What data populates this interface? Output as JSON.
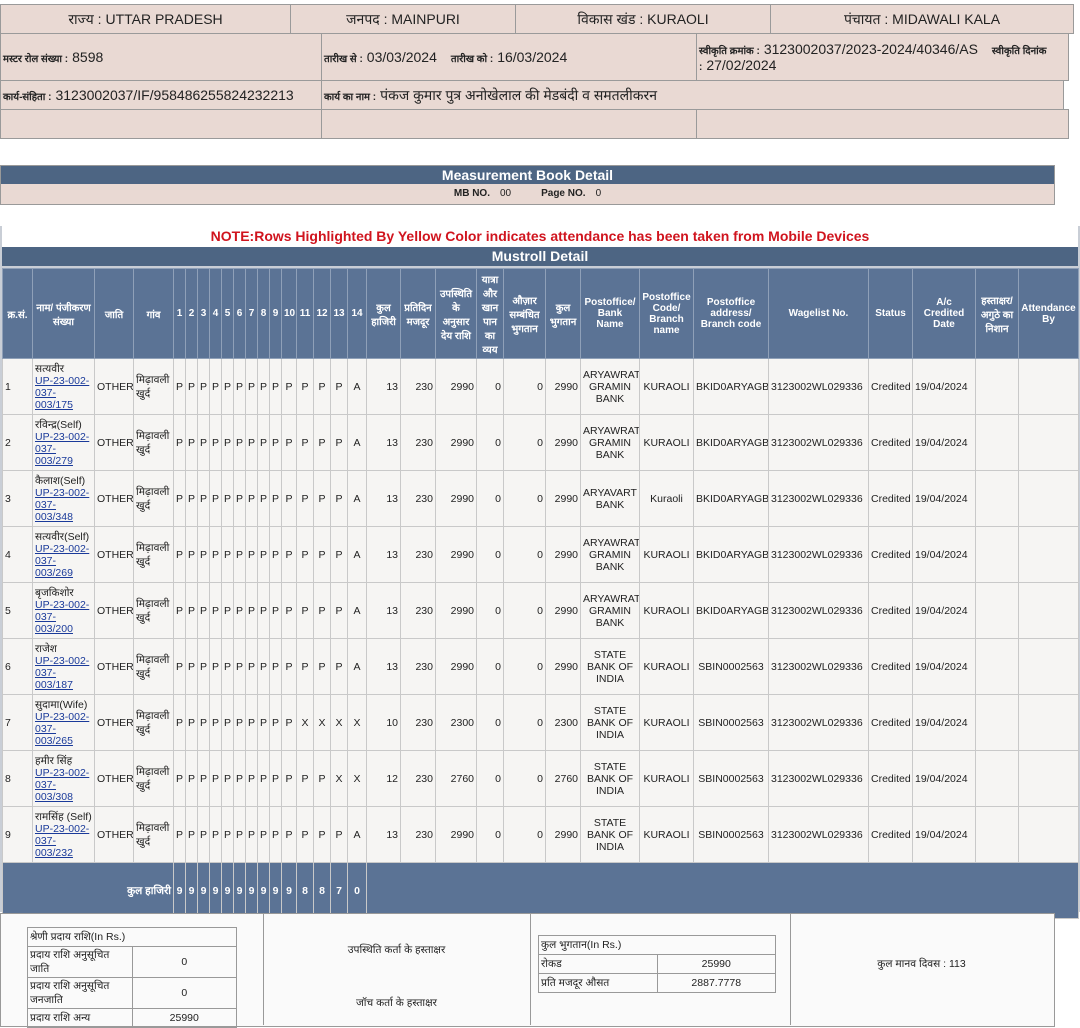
{
  "header": {
    "state": "राज्य : UTTAR PRADESH",
    "district": "जनपद : MAINPURI",
    "block": "विकास खंड : KURAOLI",
    "panchayat": "पंचायत : MIDAWALI KALA",
    "muster_label": "मस्टर रोल संख्या :",
    "muster_no": 8598,
    "from_label": "तारीख से :",
    "from": "03/03/2024",
    "to_label": "तारीख को :",
    "to": "16/03/2024",
    "sanction_label": "स्वीकृति क्रमांक :",
    "sanction_no": "3123002037/2023-2024/40346/AS",
    "sanction_date_label": "स्वीकृति दिनांक :",
    "sanction_date": "27/02/2024",
    "work_code_label": "कार्य-संहिता :",
    "work_code": "3123002037/IF/958486255824232213",
    "work_name_label": "कार्य का नाम :",
    "work_name": "पंकज कुमार पुत्र अनोखेलाल की मेडबंदी व समतलीकरन"
  },
  "mb": {
    "title": "Measurement Book Detail",
    "mb_label": "MB NO.",
    "mb_no": "00",
    "page_label": "Page NO.",
    "page_no": 0
  },
  "note": "NOTE:Rows Highlighted By Yellow Color indicates attendance has been taken from Mobile Devices",
  "mustroll": {
    "title": "Mustroll Detail",
    "columns": [
      "क्र.सं.",
      "नाम/ पंजीकरण संख्या",
      "जाति",
      "गांव",
      1,
      2,
      3,
      4,
      5,
      6,
      7,
      8,
      9,
      10,
      11,
      12,
      13,
      14,
      "कुल हाजिरी",
      "प्रतिदिन मजदूर",
      "उपस्थिति के अनुसार देय राशि",
      "यात्रा और खान पान का व्यय",
      "औज़ार सम्बंधित भुगतान",
      "कुल भुगतान",
      "Postoffice/ Bank Name",
      "Postoffice Code/ Branch name",
      "Postoffice address/ Branch code",
      "Wagelist No.",
      "Status",
      "A/c Credited Date",
      "हस्ताक्षर/ अगुठे का निशान",
      "Attendance By"
    ],
    "rows": [
      {
        "sn": 1,
        "name": "सत्यवीर",
        "reg": "UP-23-002-037-003/175",
        "caste": "OTHER",
        "village": "मिढ़ावली खुर्द",
        "attendance": [
          "P",
          "P",
          "P",
          "P",
          "P",
          "P",
          "P",
          "P",
          "P",
          "P",
          "P",
          "P",
          "P",
          "A"
        ],
        "total_days": 13,
        "daily_wage": 230,
        "due": 2990,
        "travel": 0,
        "tools": 0,
        "total_pay": 2990,
        "bank": "ARYAWRAT GRAMIN BANK",
        "branch": "KURAOLI",
        "code": "BKID0ARYAGB",
        "wagelist": "3123002WL029336",
        "status": "Credited",
        "credited_date": "19/04/2024"
      },
      {
        "sn": 2,
        "name": "रविन्द्र(Self)",
        "reg": "UP-23-002-037-003/279",
        "caste": "OTHER",
        "village": "मिढ़ावली खुर्द",
        "attendance": [
          "P",
          "P",
          "P",
          "P",
          "P",
          "P",
          "P",
          "P",
          "P",
          "P",
          "P",
          "P",
          "P",
          "A"
        ],
        "total_days": 13,
        "daily_wage": 230,
        "due": 2990,
        "travel": 0,
        "tools": 0,
        "total_pay": 2990,
        "bank": "ARYAWRAT GRAMIN BANK",
        "branch": "KURAOLI",
        "code": "BKID0ARYAGB",
        "wagelist": "3123002WL029336",
        "status": "Credited",
        "credited_date": "19/04/2024"
      },
      {
        "sn": 3,
        "name": "कैलाश(Self)",
        "reg": "UP-23-002-037-003/348",
        "caste": "OTHER",
        "village": "मिढ़ावली खुर्द",
        "attendance": [
          "P",
          "P",
          "P",
          "P",
          "P",
          "P",
          "P",
          "P",
          "P",
          "P",
          "P",
          "P",
          "P",
          "A"
        ],
        "total_days": 13,
        "daily_wage": 230,
        "due": 2990,
        "travel": 0,
        "tools": 0,
        "total_pay": 2990,
        "bank": "ARYAVART BANK",
        "branch": "Kuraoli",
        "code": "BKID0ARYAGB",
        "wagelist": "3123002WL029336",
        "status": "Credited",
        "credited_date": "19/04/2024"
      },
      {
        "sn": 4,
        "name": "सत्यवीर(Self)",
        "reg": "UP-23-002-037-003/269",
        "caste": "OTHER",
        "village": "मिढ़ावली खुर्द",
        "attendance": [
          "P",
          "P",
          "P",
          "P",
          "P",
          "P",
          "P",
          "P",
          "P",
          "P",
          "P",
          "P",
          "P",
          "A"
        ],
        "total_days": 13,
        "daily_wage": 230,
        "due": 2990,
        "travel": 0,
        "tools": 0,
        "total_pay": 2990,
        "bank": "ARYAWRAT GRAMIN BANK",
        "branch": "KURAOLI",
        "code": "BKID0ARYAGB",
        "wagelist": "3123002WL029336",
        "status": "Credited",
        "credited_date": "19/04/2024"
      },
      {
        "sn": 5,
        "name": "बृजकिशोर",
        "reg": "UP-23-002-037-003/200",
        "caste": "OTHER",
        "village": "मिढ़ावली खुर्द",
        "attendance": [
          "P",
          "P",
          "P",
          "P",
          "P",
          "P",
          "P",
          "P",
          "P",
          "P",
          "P",
          "P",
          "P",
          "A"
        ],
        "total_days": 13,
        "daily_wage": 230,
        "due": 2990,
        "travel": 0,
        "tools": 0,
        "total_pay": 2990,
        "bank": "ARYAWRAT GRAMIN BANK",
        "branch": "KURAOLI",
        "code": "BKID0ARYAGB",
        "wagelist": "3123002WL029336",
        "status": "Credited",
        "credited_date": "19/04/2024"
      },
      {
        "sn": 6,
        "name": "राजेश",
        "reg": "UP-23-002-037-003/187",
        "caste": "OTHER",
        "village": "मिढ़ावली खुर्द",
        "attendance": [
          "P",
          "P",
          "P",
          "P",
          "P",
          "P",
          "P",
          "P",
          "P",
          "P",
          "P",
          "P",
          "P",
          "A"
        ],
        "total_days": 13,
        "daily_wage": 230,
        "due": 2990,
        "travel": 0,
        "tools": 0,
        "total_pay": 2990,
        "bank": "STATE BANK OF INDIA",
        "branch": "KURAOLI",
        "code": "SBIN0002563",
        "wagelist": "3123002WL029336",
        "status": "Credited",
        "credited_date": "19/04/2024"
      },
      {
        "sn": 7,
        "name": "सुदामा(Wife)",
        "reg": "UP-23-002-037-003/265",
        "caste": "OTHER",
        "village": "मिढ़ावली खुर्द",
        "attendance": [
          "P",
          "P",
          "P",
          "P",
          "P",
          "P",
          "P",
          "P",
          "P",
          "P",
          "X",
          "X",
          "X",
          "X"
        ],
        "total_days": 10,
        "daily_wage": 230,
        "due": 2300,
        "travel": 0,
        "tools": 0,
        "total_pay": 2300,
        "bank": "STATE BANK OF INDIA",
        "branch": "KURAOLI",
        "code": "SBIN0002563",
        "wagelist": "3123002WL029336",
        "status": "Credited",
        "credited_date": "19/04/2024"
      },
      {
        "sn": 8,
        "name": "हमीर सिंह",
        "reg": "UP-23-002-037-003/308",
        "caste": "OTHER",
        "village": "मिढ़ावली खुर्द",
        "attendance": [
          "P",
          "P",
          "P",
          "P",
          "P",
          "P",
          "P",
          "P",
          "P",
          "P",
          "P",
          "P",
          "X",
          "X"
        ],
        "total_days": 12,
        "daily_wage": 230,
        "due": 2760,
        "travel": 0,
        "tools": 0,
        "total_pay": 2760,
        "bank": "STATE BANK OF INDIA",
        "branch": "KURAOLI",
        "code": "SBIN0002563",
        "wagelist": "3123002WL029336",
        "status": "Credited",
        "credited_date": "19/04/2024"
      },
      {
        "sn": 9,
        "name": "रामसिंह (Self)",
        "reg": "UP-23-002-037-003/232",
        "caste": "OTHER",
        "village": "मिढ़ावली खुर्द",
        "attendance": [
          "P",
          "P",
          "P",
          "P",
          "P",
          "P",
          "P",
          "P",
          "P",
          "P",
          "P",
          "P",
          "P",
          "A"
        ],
        "total_days": 13,
        "daily_wage": 230,
        "due": 2990,
        "travel": 0,
        "tools": 0,
        "total_pay": 2990,
        "bank": "STATE BANK OF INDIA",
        "branch": "KURAOLI",
        "code": "SBIN0002563",
        "wagelist": "3123002WL029336",
        "status": "Credited",
        "credited_date": "19/04/2024"
      }
    ],
    "total_label": "कुल हाजिरी",
    "day_totals": [
      9,
      9,
      9,
      9,
      9,
      9,
      9,
      9,
      9,
      9,
      8,
      8,
      7,
      0
    ]
  },
  "footer": {
    "category_title": "श्रेणी प्रदाय राशि(In Rs.)",
    "category_rows": [
      [
        "प्रदाय राशि अनुसूचित जाति",
        0
      ],
      [
        "प्रदाय राशि अनुसूचित जनजाति",
        0
      ],
      [
        "प्रदाय राशि अन्य",
        25990
      ]
    ],
    "sign_present": "उपस्थिति कर्ता के हस्ताक्षर",
    "sign_check": "जॉच कर्ता के हस्ताक्षर",
    "payment_title": "कुल भुगतान(In Rs.)",
    "payment_rows": [
      [
        "रोकड",
        25990
      ],
      [
        "प्रति मजदूर औसत",
        2887.7778
      ]
    ],
    "man_days": "कुल मानव दिवस : 113"
  }
}
